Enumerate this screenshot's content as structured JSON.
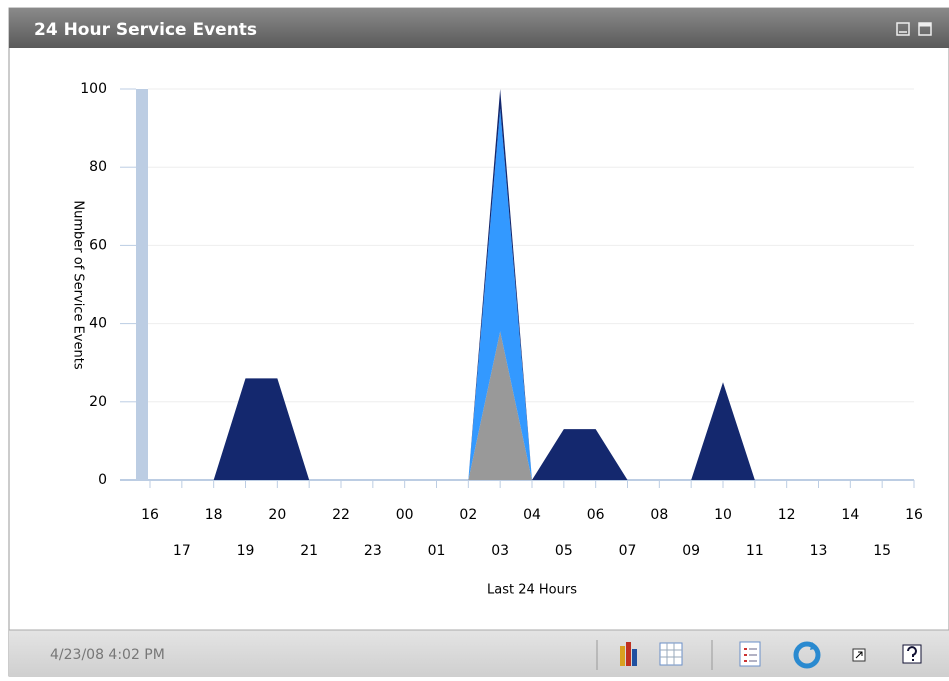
{
  "header": {
    "title": "24 Hour Service Events"
  },
  "chart_data": {
    "type": "area",
    "stacked": true,
    "y_label": "Number of Service Events",
    "x_label": "Last 24 Hours",
    "categories": [
      "16",
      "17",
      "18",
      "19",
      "20",
      "21",
      "22",
      "23",
      "00",
      "01",
      "02",
      "03",
      "04",
      "05",
      "06",
      "07",
      "08",
      "09",
      "10",
      "11",
      "12",
      "13",
      "14",
      "15",
      "16"
    ],
    "series": [
      {
        "color": "#999999",
        "values": [
          0,
          0,
          0,
          0,
          0,
          0,
          0,
          0,
          0,
          0,
          0,
          38,
          0,
          0,
          0,
          0,
          0,
          0,
          0,
          0,
          0,
          0,
          0,
          0,
          0
        ]
      },
      {
        "color": "#3399ff",
        "values": [
          0,
          0,
          0,
          0,
          0,
          0,
          0,
          0,
          0,
          0,
          0,
          57,
          0,
          0,
          0,
          0,
          0,
          0,
          0,
          0,
          0,
          0,
          0,
          0,
          0
        ]
      },
      {
        "color": "#14286e",
        "values": [
          0,
          0,
          0,
          26,
          26,
          0,
          0,
          0,
          0,
          0,
          0,
          5,
          0,
          13,
          13,
          0,
          0,
          0,
          25,
          0,
          0,
          0,
          0,
          0,
          0
        ]
      }
    ],
    "ylim": [
      0,
      100
    ],
    "yticks": [
      0,
      20,
      40,
      60,
      80,
      100
    ],
    "grid": true
  },
  "footer": {
    "timestamp": "4/23/08 4:02 PM"
  }
}
